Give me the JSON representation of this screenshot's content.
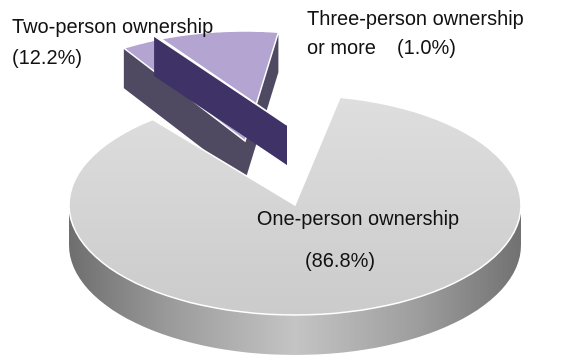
{
  "chart_data": {
    "type": "pie",
    "style": "3d-exploded",
    "slices": [
      {
        "label": "One-person ownership",
        "value_label": "(86.8%)",
        "value": 86.8,
        "color": "#d3d3d3"
      },
      {
        "label": "Two-person ownership",
        "value_label": "(12.2%)",
        "value": 12.2,
        "color": "#b4a4d2"
      },
      {
        "label_lines": [
          "Three-person ownership",
          "or more"
        ],
        "value_label": "(1.0%)",
        "value": 1.0,
        "color": "#5a4a86"
      }
    ]
  }
}
